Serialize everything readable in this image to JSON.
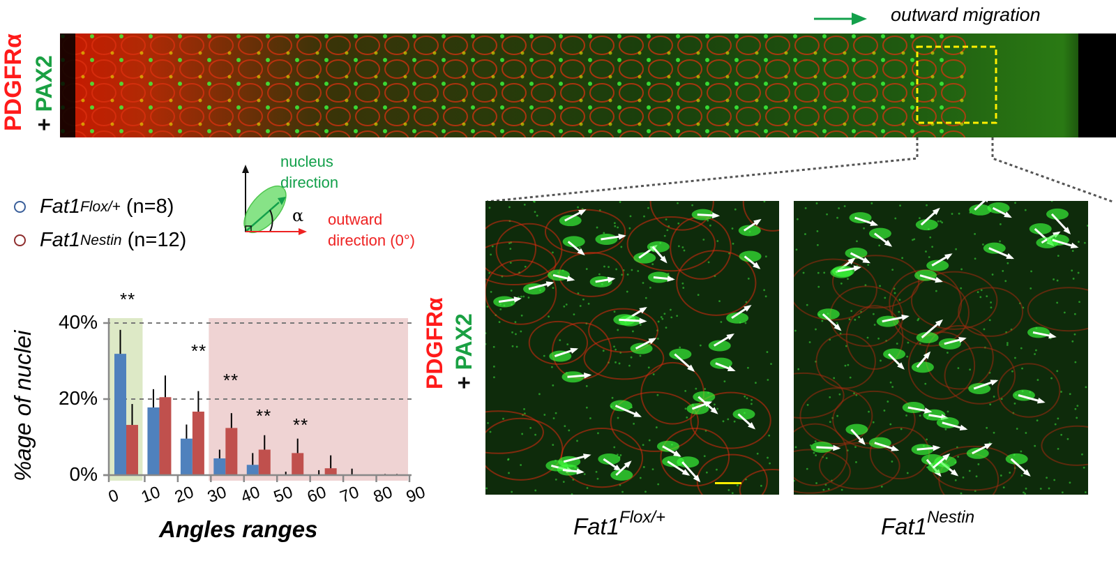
{
  "top_panel": {
    "stain_label": {
      "marker1": "PDGFRα",
      "plus": "+",
      "marker2": "PAX2"
    },
    "migration_label": "outward migration",
    "migration_arrow_color": "#13a04b",
    "zoom_box_color": "#ffee00"
  },
  "legend": {
    "items": [
      {
        "genotype": "Fat1",
        "superscript": "Flox/+",
        "n_label": "(n=8)",
        "color": "#3a5f9a"
      },
      {
        "genotype": "Fat1",
        "superscript": "Nestin",
        "n_label": "(n=12)",
        "color": "#8e2d2d"
      }
    ]
  },
  "diagram": {
    "nucleus_label_line1": "nucleus",
    "nucleus_label_line2": "direction",
    "angle_symbol": "α",
    "outward_label_line1": "outward",
    "outward_label_line2": "direction (0°)"
  },
  "micrographs": {
    "stain_label": {
      "marker1": "PDGFRα",
      "plus": "+",
      "marker2": "PAX2"
    },
    "panels": [
      {
        "genotype": "Fat1",
        "superscript": "Flox/+"
      },
      {
        "genotype": "Fat1",
        "superscript": "Nestin"
      }
    ],
    "scale_bar_color": "#ffee00"
  },
  "chart_data": {
    "type": "bar",
    "title": "",
    "xlabel": "Angles ranges",
    "ylabel": "%age of nuclei",
    "ylim": [
      0,
      40
    ],
    "yticks": [
      "0%",
      "20%",
      "40%"
    ],
    "xticks": [
      "0",
      "10",
      "20",
      "30",
      "40",
      "50",
      "60",
      "70",
      "80",
      "90"
    ],
    "grid": "horizontal dashed at 20% and 40%",
    "categories": [
      "0-10",
      "10-20",
      "20-30",
      "30-40",
      "40-50",
      "50-60",
      "60-70",
      "70-80",
      "80-90"
    ],
    "series": [
      {
        "name": "Fat1 Flox/+ (n=8)",
        "color": "#4f81bd",
        "values": [
          31.9,
          17.8,
          9.6,
          4.4,
          2.7,
          0.0,
          0.0,
          0.0,
          0.0
        ],
        "error_top": [
          38.2,
          22.6,
          13.3,
          6.7,
          5.8,
          0.9,
          1.3,
          1.7,
          0.3
        ]
      },
      {
        "name": "Fat1 Nestin (n=12)",
        "color": "#c0504d",
        "values": [
          13.2,
          20.5,
          16.7,
          12.4,
          6.7,
          5.8,
          1.8,
          0.0,
          0.0
        ],
        "error_top": [
          18.7,
          26.2,
          22.1,
          16.3,
          10.5,
          9.6,
          5.2,
          0.0,
          0.3
        ]
      }
    ],
    "significance": [
      {
        "category": "0-10",
        "label": "**"
      },
      {
        "category": "20-30",
        "label": "**"
      },
      {
        "category": "30-40",
        "label": "**"
      },
      {
        "category": "40-50",
        "label": "**"
      },
      {
        "category": "50-60",
        "label": "**"
      }
    ],
    "shaded_regions": [
      {
        "from": 0,
        "to": 10,
        "color": "#dde9c6"
      },
      {
        "from": 30,
        "to": 90,
        "color": "#efd3d3"
      }
    ]
  }
}
